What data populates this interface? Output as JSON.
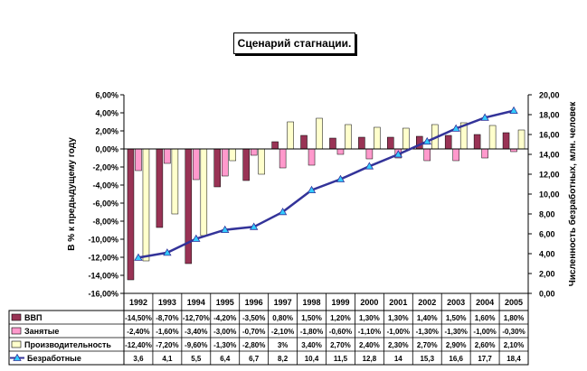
{
  "chart_data": {
    "type": "bar",
    "title": "Сценарий стагнации.",
    "ylabel_left": "В % к предыдущему году",
    "ylabel_right": "Численность безработных, млн. человек",
    "categories": [
      "1992",
      "1993",
      "1994",
      "1995",
      "1996",
      "1997",
      "1998",
      "1999",
      "2000",
      "2001",
      "2002",
      "2003",
      "2004",
      "2005"
    ],
    "left_axis": {
      "ylim": [
        -16,
        6
      ],
      "ticks": [
        6,
        4,
        2,
        0,
        -2,
        -4,
        -6,
        -8,
        -10,
        -12,
        -14,
        -16
      ],
      "tick_labels": [
        "6,00%",
        "4,00%",
        "2,00%",
        "0,00%",
        "-2,00%",
        "-4,00%",
        "-6,00%",
        "-8,00%",
        "-10,00%",
        "-12,00%",
        "-14,00%",
        "-16,00%"
      ]
    },
    "right_axis": {
      "ylim": [
        0,
        20
      ],
      "ticks": [
        20,
        18,
        16,
        14,
        12,
        10,
        8,
        6,
        4,
        2,
        0
      ],
      "tick_labels": [
        "20,00",
        "18,00",
        "16,00",
        "14,00",
        "12,00",
        "10,00",
        "8,00",
        "6,00",
        "4,00",
        "2,00",
        "0,00"
      ]
    },
    "series": [
      {
        "name": "ВВП",
        "kind": "bar",
        "axis": "left",
        "color": "#993355",
        "values": [
          -14.5,
          -8.7,
          -12.7,
          -4.2,
          -3.5,
          0.8,
          1.5,
          1.2,
          1.3,
          1.3,
          1.4,
          1.5,
          1.6,
          1.8
        ],
        "labels": [
          "-14,50%",
          "-8,70%",
          "-12,70%",
          "-4,20%",
          "-3,50%",
          "0,80%",
          "1,50%",
          "1,20%",
          "1,30%",
          "1,30%",
          "1,40%",
          "1,50%",
          "1,60%",
          "1,80%"
        ]
      },
      {
        "name": "Занятые",
        "kind": "bar",
        "axis": "left",
        "color": "#ff99cc",
        "values": [
          -2.4,
          -1.6,
          -3.4,
          -3.0,
          -0.7,
          -2.1,
          -1.8,
          -0.6,
          -1.1,
          -1.0,
          -1.3,
          -1.3,
          -1.0,
          -0.3
        ],
        "labels": [
          "-2,40%",
          "-1,60%",
          "-3,40%",
          "-3,00%",
          "-0,70%",
          "-2,10%",
          "-1,80%",
          "-0,60%",
          "-1,10%",
          "-1,00%",
          "-1,30%",
          "-1,30%",
          "-1,00%",
          "-0,30%"
        ]
      },
      {
        "name": "Производительность",
        "kind": "bar",
        "axis": "left",
        "color": "#ffffcc",
        "values": [
          -12.4,
          -7.2,
          -9.6,
          -1.3,
          -2.8,
          3.0,
          3.4,
          2.7,
          2.4,
          2.3,
          2.7,
          2.9,
          2.6,
          2.1
        ],
        "labels": [
          "-12,40%",
          "-7,20%",
          "-9,60%",
          "-1,30%",
          "-2,80%",
          "3%",
          "3,40%",
          "2,70%",
          "2,40%",
          "2,30%",
          "2,70%",
          "2,90%",
          "2,60%",
          "2,10%"
        ]
      },
      {
        "name": "Безработные",
        "kind": "line",
        "axis": "right",
        "color": "#333399",
        "marker_color": "#33ccff",
        "values": [
          3.6,
          4.1,
          5.5,
          6.4,
          6.7,
          8.2,
          10.4,
          11.5,
          12.8,
          14,
          15.3,
          16.6,
          17.7,
          18.4
        ],
        "labels": [
          "3,6",
          "4,1",
          "5,5",
          "6,4",
          "6,7",
          "8,2",
          "10,4",
          "11,5",
          "12,8",
          "14",
          "15,3",
          "16,6",
          "17,7",
          "18,4"
        ]
      }
    ]
  }
}
